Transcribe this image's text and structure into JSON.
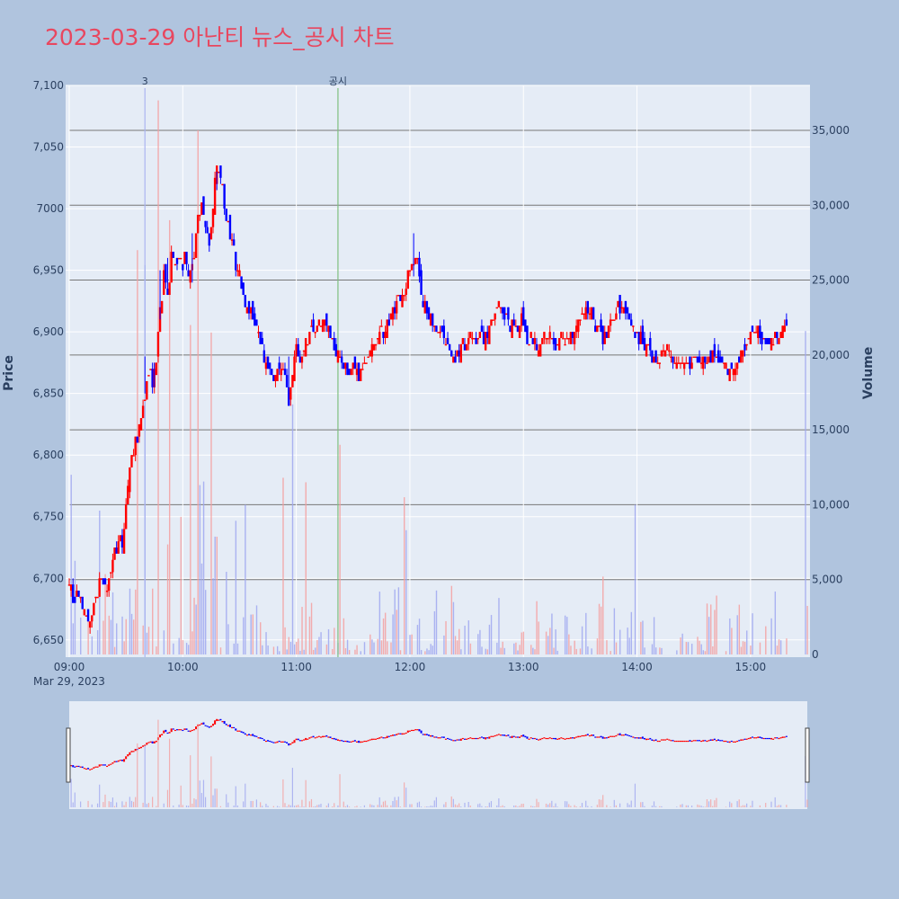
{
  "page": {
    "title": "2023-03-29 아난티 뉴스_공시 차트",
    "title_color": "#e8475f",
    "background": "#b0c4de",
    "plot_background": "#e5ecf6"
  },
  "chart_data": {
    "type": "candlestick",
    "title": "2023-03-29 아난티 뉴스_공시 차트",
    "ylabel": "Price",
    "y2label": "Volume",
    "ylim": [
      6636,
      7100
    ],
    "y2lim": [
      0,
      38000
    ],
    "y_ticks": [
      6650,
      6700,
      6750,
      6800,
      6850,
      6900,
      6950,
      7000,
      7050,
      7100
    ],
    "y_tick_labels": [
      "6,650",
      "6,700",
      "6,750",
      "6,800",
      "6,850",
      "6,900",
      "6,950",
      "7000",
      "7,050",
      "7,100"
    ],
    "y2_ticks": [
      0,
      5000,
      10000,
      15000,
      20000,
      25000,
      30000,
      35000
    ],
    "y2_tick_labels": [
      "0",
      "5,000",
      "10,000",
      "15,000",
      "20,000",
      "25,000",
      "30,000",
      "35,000"
    ],
    "x_range": [
      "09:00",
      "15:30"
    ],
    "x_ticks": [
      "09:00",
      "10:00",
      "11:00",
      "12:00",
      "13:00",
      "14:00",
      "15:00"
    ],
    "x_date_label": "Mar 29, 2023",
    "up_color": "#ff0000",
    "down_color": "#0000ff",
    "annotations": [
      {
        "time": "09:40",
        "label": "3",
        "color": "#aab4f0"
      },
      {
        "time": "11:22",
        "label": "공시",
        "color": "#7fbf7f"
      }
    ],
    "price_path": [
      [
        "09:00",
        6700
      ],
      [
        "09:02",
        6680
      ],
      [
        "09:05",
        6690
      ],
      [
        "09:08",
        6670
      ],
      [
        "09:10",
        6665
      ],
      [
        "09:13",
        6680
      ],
      [
        "09:16",
        6695
      ],
      [
        "09:19",
        6690
      ],
      [
        "09:22",
        6710
      ],
      [
        "09:25",
        6725
      ],
      [
        "09:28",
        6730
      ],
      [
        "09:30",
        6760
      ],
      [
        "09:32",
        6790
      ],
      [
        "09:34",
        6805
      ],
      [
        "09:36",
        6815
      ],
      [
        "09:38",
        6830
      ],
      [
        "09:40",
        6850
      ],
      [
        "09:42",
        6865
      ],
      [
        "09:44",
        6860
      ],
      [
        "09:46",
        6875
      ],
      [
        "09:48",
        6920
      ],
      [
        "09:50",
        6945
      ],
      [
        "09:52",
        6935
      ],
      [
        "09:54",
        6960
      ],
      [
        "09:56",
        6950
      ],
      [
        "09:58",
        6965
      ],
      [
        "10:00",
        6955
      ],
      [
        "10:02",
        6960
      ],
      [
        "10:04",
        6945
      ],
      [
        "10:06",
        6965
      ],
      [
        "10:08",
        6990
      ],
      [
        "10:10",
        7000
      ],
      [
        "10:12",
        6985
      ],
      [
        "10:14",
        6975
      ],
      [
        "10:16",
        7005
      ],
      [
        "10:18",
        7030
      ],
      [
        "10:20",
        7025
      ],
      [
        "10:22",
        7005
      ],
      [
        "10:24",
        6985
      ],
      [
        "10:26",
        6970
      ],
      [
        "10:28",
        6955
      ],
      [
        "10:30",
        6945
      ],
      [
        "10:32",
        6925
      ],
      [
        "10:35",
        6915
      ],
      [
        "10:38",
        6910
      ],
      [
        "10:40",
        6895
      ],
      [
        "10:43",
        6880
      ],
      [
        "10:46",
        6870
      ],
      [
        "10:48",
        6865
      ],
      [
        "10:50",
        6875
      ],
      [
        "10:53",
        6870
      ],
      [
        "10:56",
        6845
      ],
      [
        "10:58",
        6870
      ],
      [
        "11:00",
        6885
      ],
      [
        "11:03",
        6875
      ],
      [
        "11:06",
        6895
      ],
      [
        "11:09",
        6905
      ],
      [
        "11:12",
        6910
      ],
      [
        "11:15",
        6905
      ],
      [
        "11:18",
        6895
      ],
      [
        "11:21",
        6885
      ],
      [
        "11:24",
        6875
      ],
      [
        "11:27",
        6868
      ],
      [
        "11:30",
        6870
      ],
      [
        "11:33",
        6865
      ],
      [
        "11:36",
        6875
      ],
      [
        "11:39",
        6885
      ],
      [
        "11:42",
        6890
      ],
      [
        "11:45",
        6900
      ],
      [
        "11:48",
        6910
      ],
      [
        "11:51",
        6915
      ],
      [
        "11:54",
        6925
      ],
      [
        "11:57",
        6935
      ],
      [
        "12:00",
        6950
      ],
      [
        "12:02",
        6960
      ],
      [
        "12:04",
        6955
      ],
      [
        "12:06",
        6935
      ],
      [
        "12:08",
        6920
      ],
      [
        "12:11",
        6910
      ],
      [
        "12:14",
        6905
      ],
      [
        "12:17",
        6895
      ],
      [
        "12:20",
        6890
      ],
      [
        "12:23",
        6880
      ],
      [
        "12:26",
        6885
      ],
      [
        "12:29",
        6890
      ],
      [
        "12:32",
        6895
      ],
      [
        "12:35",
        6890
      ],
      [
        "12:38",
        6895
      ],
      [
        "12:41",
        6900
      ],
      [
        "12:44",
        6910
      ],
      [
        "12:47",
        6920
      ],
      [
        "12:50",
        6915
      ],
      [
        "12:53",
        6905
      ],
      [
        "12:56",
        6900
      ],
      [
        "12:59",
        6910
      ],
      [
        "13:02",
        6895
      ],
      [
        "13:05",
        6895
      ],
      [
        "13:08",
        6890
      ],
      [
        "13:11",
        6895
      ],
      [
        "13:14",
        6900
      ],
      [
        "13:17",
        6890
      ],
      [
        "13:20",
        6895
      ],
      [
        "13:23",
        6890
      ],
      [
        "13:26",
        6895
      ],
      [
        "13:29",
        6905
      ],
      [
        "13:32",
        6915
      ],
      [
        "13:35",
        6920
      ],
      [
        "13:38",
        6905
      ],
      [
        "13:41",
        6895
      ],
      [
        "13:44",
        6900
      ],
      [
        "13:47",
        6910
      ],
      [
        "13:50",
        6920
      ],
      [
        "13:52",
        6925
      ],
      [
        "13:55",
        6915
      ],
      [
        "13:58",
        6905
      ],
      [
        "14:01",
        6895
      ],
      [
        "14:04",
        6890
      ],
      [
        "14:07",
        6880
      ],
      [
        "14:10",
        6875
      ],
      [
        "14:13",
        6880
      ],
      [
        "14:16",
        6885
      ],
      [
        "14:19",
        6880
      ],
      [
        "14:22",
        6875
      ],
      [
        "14:25",
        6870
      ],
      [
        "14:28",
        6875
      ],
      [
        "14:31",
        6880
      ],
      [
        "14:34",
        6875
      ],
      [
        "14:37",
        6875
      ],
      [
        "14:40",
        6880
      ],
      [
        "14:43",
        6875
      ],
      [
        "14:46",
        6875
      ],
      [
        "14:49",
        6870
      ],
      [
        "14:52",
        6875
      ],
      [
        "14:55",
        6880
      ],
      [
        "14:58",
        6890
      ],
      [
        "15:01",
        6895
      ],
      [
        "15:04",
        6900
      ],
      [
        "15:07",
        6895
      ],
      [
        "15:10",
        6890
      ],
      [
        "15:13",
        6895
      ],
      [
        "15:16",
        6900
      ],
      [
        "15:19",
        6905
      ]
    ],
    "candle_range": [
      [
        "09:40",
        6850,
        6880
      ],
      [
        "09:45",
        6855,
        6875
      ],
      [
        "09:48",
        6910,
        6950
      ],
      [
        "09:52",
        6930,
        6960
      ],
      [
        "10:05",
        6940,
        6980
      ],
      [
        "10:18",
        7015,
        7030
      ],
      [
        "10:56",
        6840,
        6880
      ],
      [
        "12:02",
        6945,
        6980
      ],
      [
        "11:09",
        6900,
        6915
      ]
    ],
    "volume_spikes": [
      [
        "09:01",
        12000,
        "down"
      ],
      [
        "09:40",
        26000,
        "down"
      ],
      [
        "09:36",
        27000,
        "up"
      ],
      [
        "09:47",
        37000,
        "up"
      ],
      [
        "09:53",
        29000,
        "up"
      ],
      [
        "10:04",
        22000,
        "up"
      ],
      [
        "10:08",
        35000,
        "up"
      ],
      [
        "10:15",
        21500,
        "up"
      ],
      [
        "10:33",
        10000,
        "down"
      ],
      [
        "10:53",
        11800,
        "up"
      ],
      [
        "10:58",
        16700,
        "down"
      ],
      [
        "11:05",
        11500,
        "up"
      ],
      [
        "11:23",
        14000,
        "up"
      ],
      [
        "11:57",
        10500,
        "up"
      ],
      [
        "11:58",
        8300,
        "down"
      ],
      [
        "13:59",
        10000,
        "down"
      ],
      [
        "13:42",
        5200,
        "up"
      ],
      [
        "15:29",
        21600,
        "down"
      ]
    ]
  }
}
